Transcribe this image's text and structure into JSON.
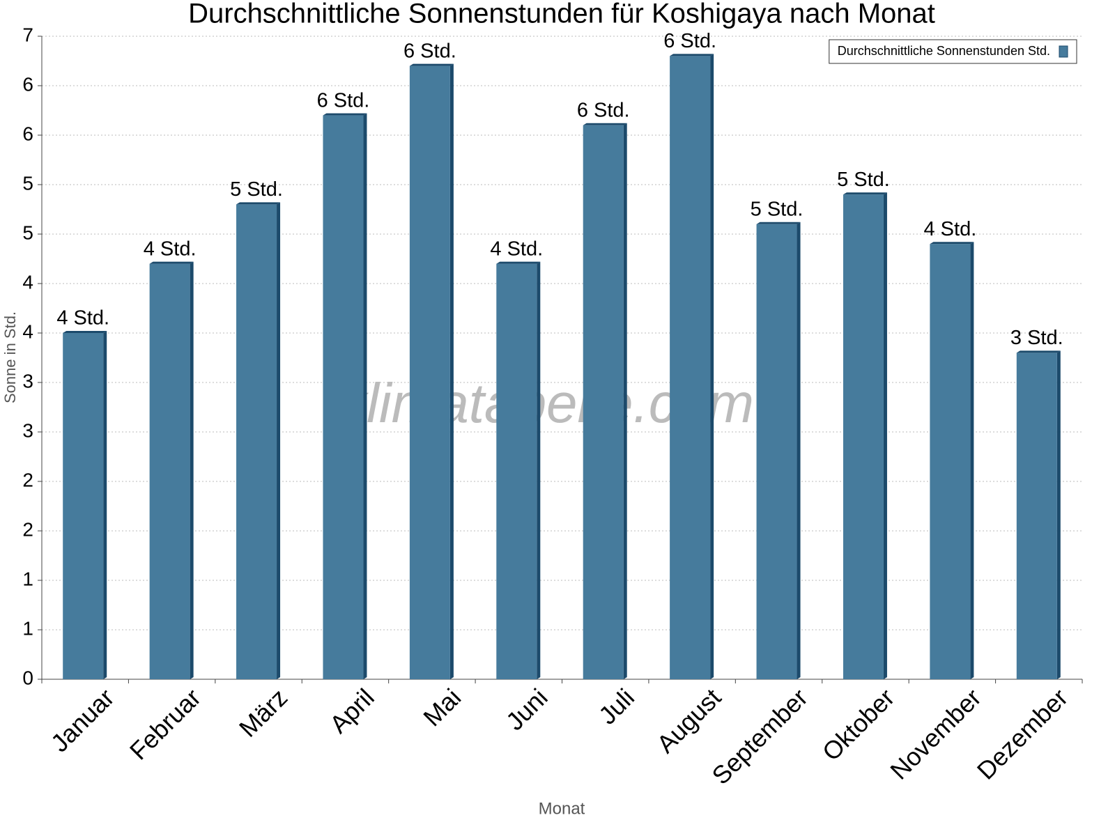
{
  "chart_data": {
    "type": "bar",
    "title": "Durchschnittliche Sonnenstunden für Koshigaya nach Monat",
    "x_label": "Monat",
    "y_label": "Sonne in Std.",
    "watermark": "klimatabelle.com",
    "categories": [
      "Januar",
      "Februar",
      "März",
      "April",
      "Mai",
      "Juni",
      "Juli",
      "August",
      "September",
      "Oktober",
      "November",
      "Dezember"
    ],
    "series": [
      {
        "name": "Durchschnittliche Sonnenstunden Std.",
        "color": "#467b9c",
        "values": [
          3.5,
          4.2,
          4.8,
          5.7,
          6.2,
          4.2,
          5.6,
          6.3,
          4.6,
          4.9,
          4.4,
          3.3
        ],
        "value_labels": [
          "4 Std.",
          "4 Std.",
          "5 Std.",
          "6 Std.",
          "6 Std.",
          "4 Std.",
          "6 Std.",
          "6 Std.",
          "5 Std.",
          "5 Std.",
          "4 Std.",
          "3 Std."
        ]
      }
    ],
    "ylim": [
      0,
      6.5
    ],
    "yticks": [
      0,
      {
        "value": 0.5,
        "label": "1"
      },
      1,
      {
        "value": 1.5,
        "label": "2"
      },
      2,
      {
        "value": 2.5,
        "label": "3"
      },
      3,
      {
        "value": 3.5,
        "label": "4"
      },
      4,
      {
        "value": 4.5,
        "label": "5"
      },
      5,
      {
        "value": 5.5,
        "label": "6"
      },
      6,
      {
        "value": 6.5,
        "label": "7"
      }
    ],
    "grid": true,
    "legend": "top-right"
  }
}
